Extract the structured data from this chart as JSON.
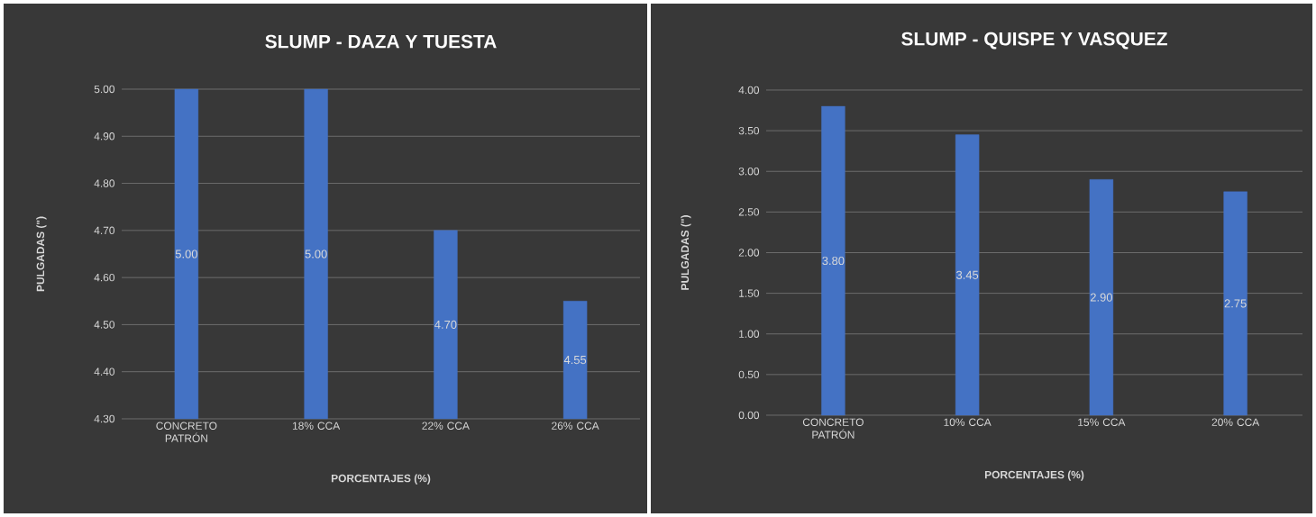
{
  "chart_data": [
    {
      "type": "bar",
      "title": "SLUMP - DAZA Y TUESTA",
      "xlabel": "PORCENTAJES (%)",
      "ylabel": "PULGADAS (\")",
      "categories": [
        "CONCRETO PATRÓN",
        "18% CCA",
        "22% CCA",
        "26% CCA"
      ],
      "values": [
        5.0,
        5.0,
        4.7,
        4.55
      ],
      "value_labels": [
        "5.00",
        "5.00",
        "4.70",
        "4.55"
      ],
      "color": "#4472c4",
      "ylim": [
        4.3,
        5.0
      ],
      "yticks": [
        {
          "value": 4.3,
          "label": "4.30"
        },
        {
          "value": 4.4,
          "label": "4.40"
        },
        {
          "value": 4.5,
          "label": "4.50"
        },
        {
          "value": 4.6,
          "label": "4.60"
        },
        {
          "value": 4.7,
          "label": "4.70"
        },
        {
          "value": 4.8,
          "label": "4.80"
        },
        {
          "value": 4.9,
          "label": "4.90"
        },
        {
          "value": 5.0,
          "label": "5.00"
        }
      ],
      "grid": "y"
    },
    {
      "type": "bar",
      "title": "SLUMP - QUISPE Y VASQUEZ",
      "xlabel": "PORCENTAJES (%)",
      "ylabel": "PULGADAS (\")",
      "categories": [
        "CONCRETO PATRÓN",
        "10% CCA",
        "15% CCA",
        "20% CCA"
      ],
      "values": [
        3.8,
        3.45,
        2.9,
        2.75
      ],
      "value_labels": [
        "3.80",
        "3.45",
        "2.90",
        "2.75"
      ],
      "color": "#4472c4",
      "ylim": [
        0,
        4
      ],
      "yticks": [
        {
          "value": 0,
          "label": "0.00"
        },
        {
          "value": 0.5,
          "label": "0.50"
        },
        {
          "value": 1,
          "label": "1.00"
        },
        {
          "value": 1.5,
          "label": "1.50"
        },
        {
          "value": 2,
          "label": "2.00"
        },
        {
          "value": 2.5,
          "label": "2.50"
        },
        {
          "value": 3,
          "label": "3.00"
        },
        {
          "value": 3.5,
          "label": "3.50"
        },
        {
          "value": 4,
          "label": "4.00"
        }
      ],
      "grid": "y"
    }
  ]
}
